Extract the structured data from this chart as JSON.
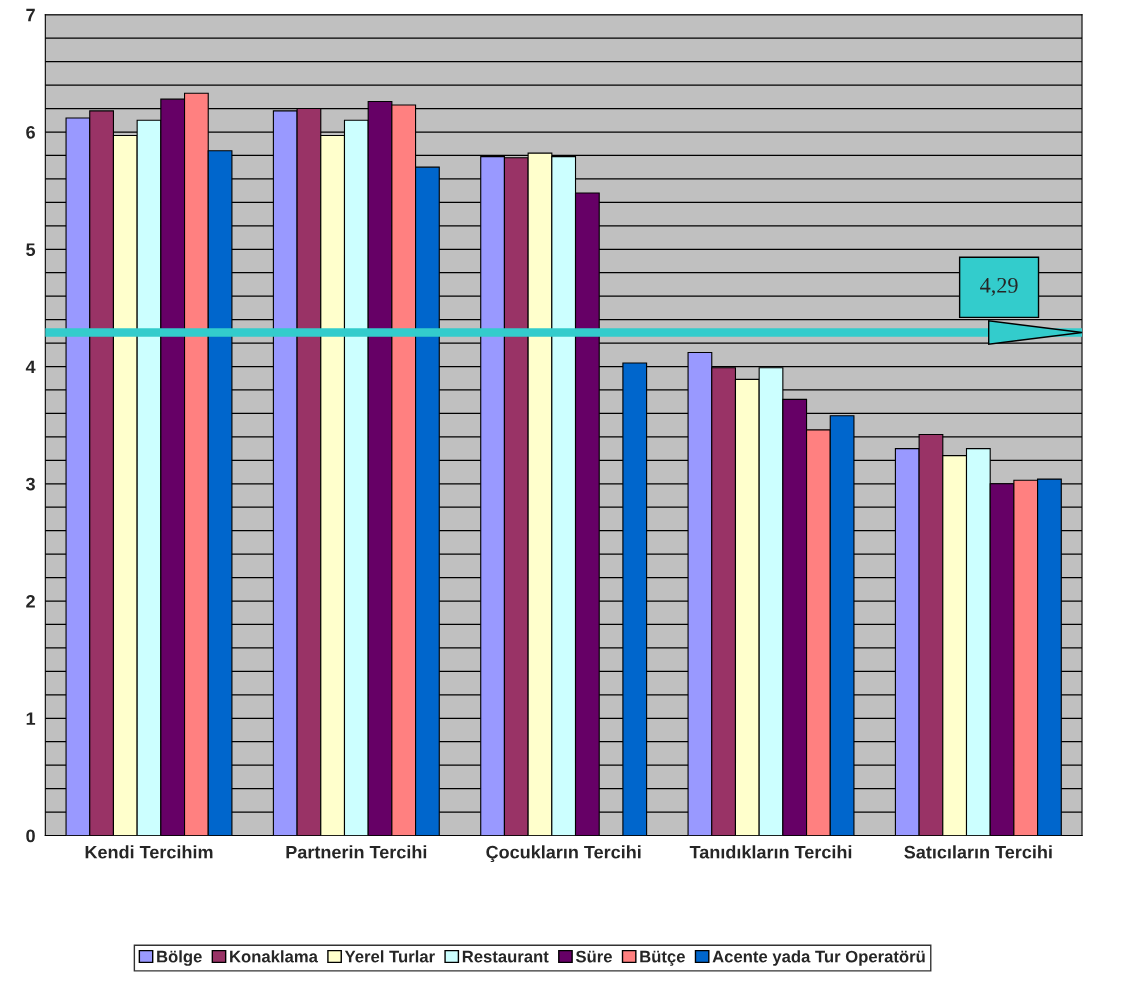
{
  "chart_data": {
    "type": "bar",
    "categories": [
      "Kendi Tercihim",
      "Partnerin Tercihi",
      "Çocukların Tercihi",
      "Tanıdıkların Tercihi",
      "Satıcıların Tercihi"
    ],
    "series": [
      {
        "name": "Bölge",
        "color": "#9999ff",
        "values": [
          6.12,
          6.18,
          5.79,
          4.12,
          3.3
        ]
      },
      {
        "name": "Konaklama",
        "color": "#993366",
        "values": [
          6.18,
          6.2,
          5.78,
          3.99,
          3.42
        ]
      },
      {
        "name": "Yerel Turlar",
        "color": "#ffffcc",
        "values": [
          5.97,
          5.97,
          5.82,
          3.89,
          3.24
        ]
      },
      {
        "name": "Restaurant",
        "color": "#ccffff",
        "values": [
          6.1,
          6.1,
          5.79,
          3.99,
          3.3
        ]
      },
      {
        "name": "Süre",
        "color": "#660066",
        "values": [
          6.28,
          6.26,
          5.48,
          3.72,
          3.0
        ]
      },
      {
        "name": "Bütçe",
        "color": "#ff8080",
        "values": [
          6.33,
          6.23,
          null,
          3.46,
          3.03
        ]
      },
      {
        "name": "Acente yada Tur Operatörü",
        "color": "#0066cc",
        "values": [
          5.84,
          5.7,
          4.03,
          3.58,
          3.04
        ]
      }
    ],
    "ylim": [
      0,
      7
    ],
    "yticks": [
      0,
      {
        "value": 0.2,
        "label": null
      },
      {
        "value": 0.4,
        "label": null
      },
      {
        "value": 0.6,
        "label": null
      },
      {
        "value": 0.8,
        "label": null
      },
      1,
      {
        "value": 1.2,
        "label": null
      },
      {
        "value": 1.4,
        "label": null
      },
      {
        "value": 1.6,
        "label": null
      },
      {
        "value": 1.8,
        "label": null
      },
      2,
      {
        "value": 2.2,
        "label": null
      },
      {
        "value": 2.4,
        "label": null
      },
      {
        "value": 2.6,
        "label": null
      },
      {
        "value": 2.8,
        "label": null
      },
      3,
      {
        "value": 3.2,
        "label": null
      },
      {
        "value": 3.4,
        "label": null
      },
      {
        "value": 3.6,
        "label": null
      },
      {
        "value": 3.8,
        "label": null
      },
      4,
      {
        "value": 4.2,
        "label": null
      },
      {
        "value": 4.4,
        "label": null
      },
      {
        "value": 4.6,
        "label": null
      },
      {
        "value": 4.8,
        "label": null
      },
      5,
      {
        "value": 5.2,
        "label": null
      },
      {
        "value": 5.4,
        "label": null
      },
      {
        "value": 5.6,
        "label": null
      },
      {
        "value": 5.8,
        "label": null
      },
      6,
      {
        "value": 6.2,
        "label": null
      },
      {
        "value": 6.4,
        "label": null
      },
      {
        "value": 6.6,
        "label": null
      },
      {
        "value": 6.8,
        "label": null
      },
      7
    ],
    "grid": "y",
    "legend": "bottom",
    "ref_lines": [
      {
        "axis": "y",
        "value": 4.29,
        "label": "4,29",
        "color": "#33cccc"
      }
    ]
  }
}
